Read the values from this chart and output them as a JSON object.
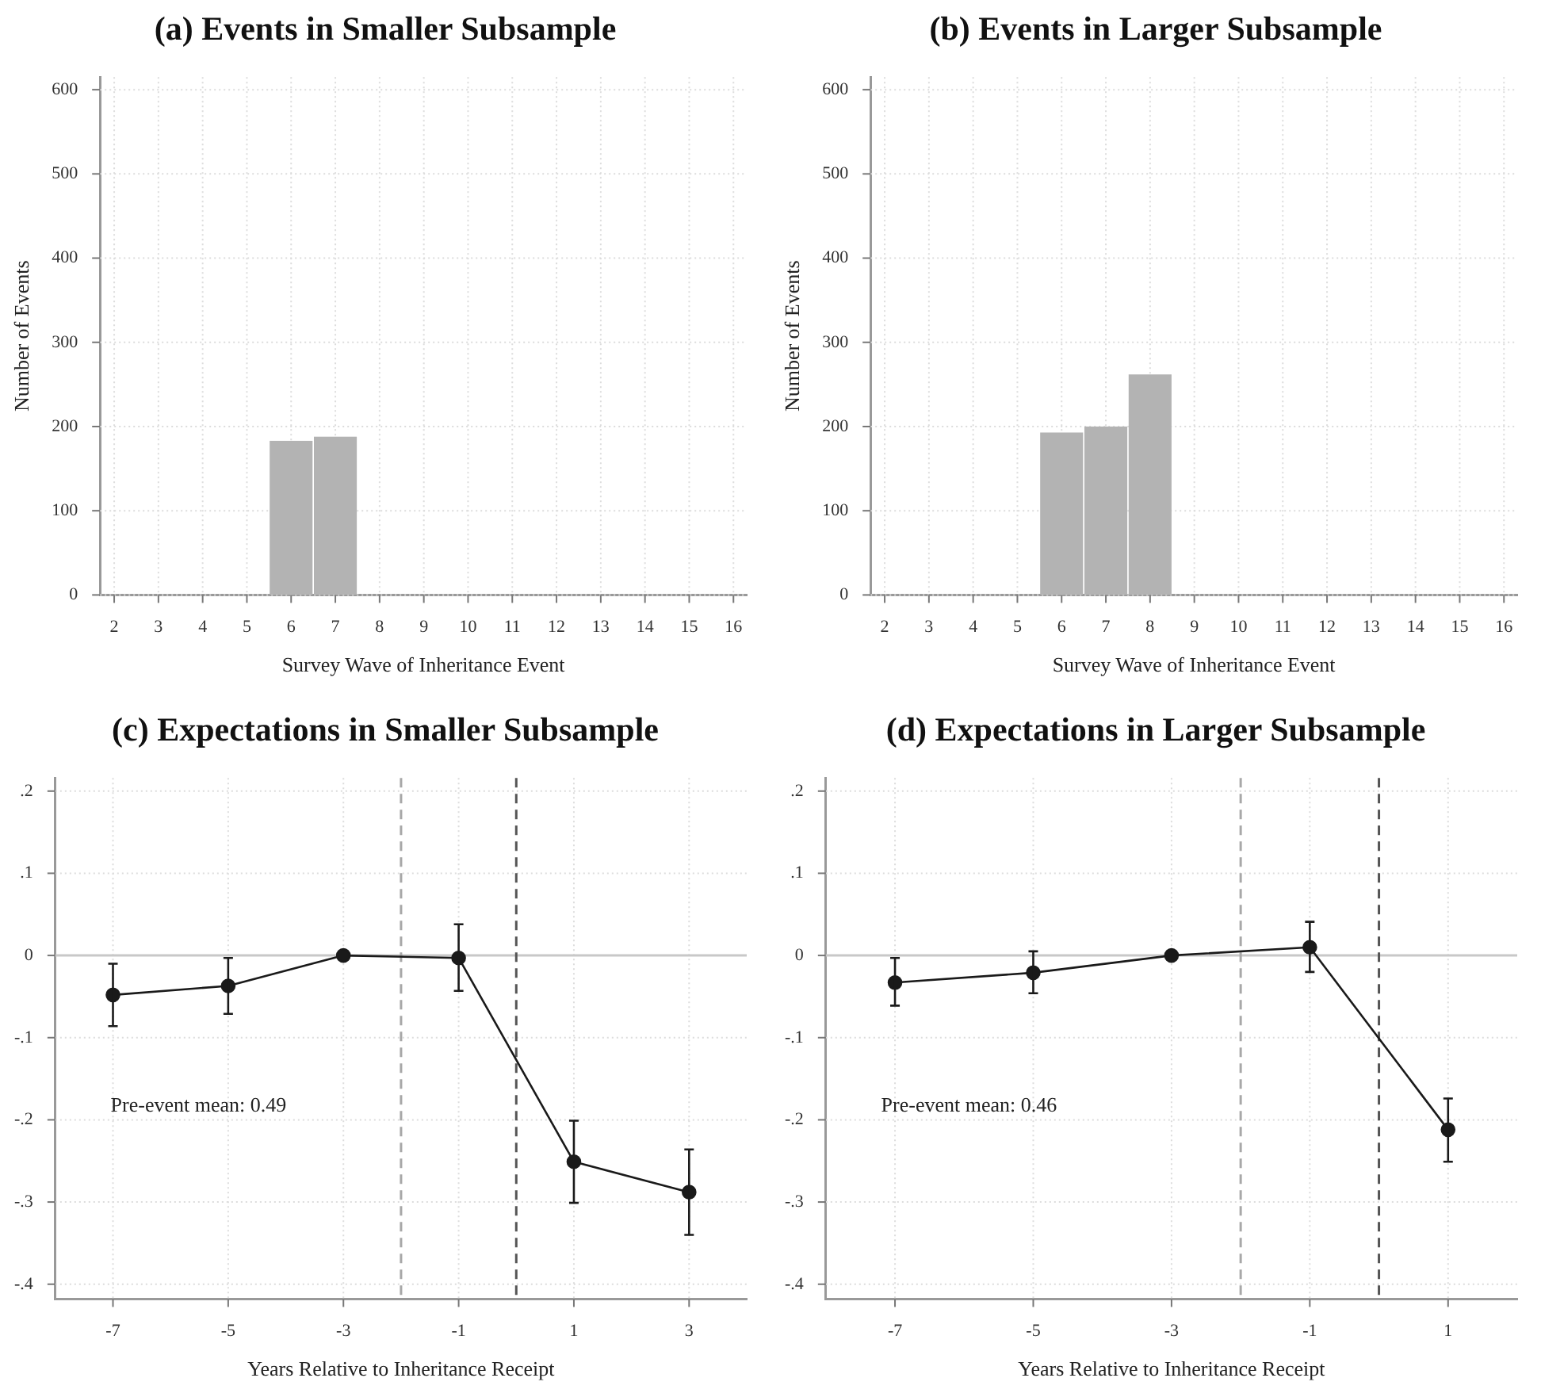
{
  "chart_data": [
    {
      "type": "histogram",
      "title": "(a) Events in Smaller Subsample",
      "xlabel": "Survey Wave of Inheritance Event",
      "ylabel": "Number of Events",
      "bins": [
        5.5,
        6.5,
        7.5
      ],
      "values": [
        183,
        188
      ],
      "color": "#b3b3b3",
      "xlim": [
        1.68,
        16.3
      ],
      "xticks": [
        2,
        3,
        4,
        5,
        6,
        7,
        8,
        9,
        10,
        11,
        12,
        13,
        14,
        15,
        16
      ],
      "ylim": [
        0,
        615
      ],
      "yticks": [
        0,
        100,
        200,
        300,
        400,
        500,
        600
      ],
      "grid": true
    },
    {
      "type": "histogram",
      "title": "(b) Events in Larger Subsample",
      "xlabel": "Survey Wave of Inheritance Event",
      "ylabel": "Number of Events",
      "bins": [
        5.5,
        6.5,
        7.5,
        8.5
      ],
      "values": [
        193,
        200,
        262
      ],
      "color": "#b3b3b3",
      "xlim": [
        1.68,
        16.3
      ],
      "xticks": [
        2,
        3,
        4,
        5,
        6,
        7,
        8,
        9,
        10,
        11,
        12,
        13,
        14,
        15,
        16
      ],
      "ylim": [
        0,
        615
      ],
      "yticks": [
        0,
        100,
        200,
        300,
        400,
        500,
        600
      ],
      "grid": true
    },
    {
      "type": "line",
      "title": "(c) Expectations in Smaller Subsample",
      "xlabel": "Years Relative to Inheritance Receipt",
      "x": [
        -7,
        -5,
        -3,
        -1,
        1,
        3
      ],
      "series": [
        {
          "color": "#1a1a1a",
          "values": [
            -0.048,
            -0.037,
            0,
            -0.003,
            -0.251,
            -0.288
          ],
          "errors": [
            [
              -0.086,
              -0.01
            ],
            [
              -0.071,
              -0.003
            ],
            null,
            [
              -0.043,
              0.038
            ],
            [
              -0.301,
              -0.201
            ],
            [
              -0.34,
              -0.236
            ]
          ]
        }
      ],
      "marker": "circle",
      "xlim": [
        -8,
        4
      ],
      "xticks": [
        -7,
        -5,
        -3,
        -1,
        1,
        3
      ],
      "ylim": [
        -0.418,
        0.216
      ],
      "yticks": [
        {
          "value": -0.4,
          "label": "-.4"
        },
        {
          "value": -0.3,
          "label": "-.3"
        },
        {
          "value": -0.2,
          "label": "-.2"
        },
        {
          "value": -0.1,
          "label": "-.1"
        },
        0,
        {
          "value": 0.1,
          "label": ".1"
        },
        {
          "value": 0.2,
          "label": ".2"
        }
      ],
      "grid": true,
      "ref_lines": [
        {
          "axis": "y",
          "value": 0,
          "color": "#c8c8c8",
          "line_style": "solid"
        },
        {
          "axis": "x",
          "value": -2,
          "color": "#a8a8a8",
          "line_style": "dashed"
        },
        {
          "axis": "x",
          "value": 0,
          "color": "#555555",
          "line_style": "dashed"
        }
      ],
      "annotations": [
        "Pre-event mean: 0.49"
      ]
    },
    {
      "type": "line",
      "title": "(d) Expectations in Larger Subsample",
      "xlabel": "Years Relative to Inheritance Receipt",
      "x": [
        -7,
        -5,
        -3,
        -1,
        1
      ],
      "series": [
        {
          "color": "#1a1a1a",
          "values": [
            -0.033,
            -0.021,
            0,
            0.01,
            -0.212
          ],
          "errors": [
            [
              -0.061,
              -0.003
            ],
            [
              -0.046,
              0.005
            ],
            null,
            [
              -0.02,
              0.041
            ],
            [
              -0.251,
              -0.174
            ]
          ]
        }
      ],
      "marker": "circle",
      "xlim": [
        -8,
        2
      ],
      "xticks": [
        -7,
        -5,
        -3,
        -1,
        1
      ],
      "ylim": [
        -0.418,
        0.216
      ],
      "yticks": [
        {
          "value": -0.4,
          "label": "-.4"
        },
        {
          "value": -0.3,
          "label": "-.3"
        },
        {
          "value": -0.2,
          "label": "-.2"
        },
        {
          "value": -0.1,
          "label": "-.1"
        },
        0,
        {
          "value": 0.1,
          "label": ".1"
        },
        {
          "value": 0.2,
          "label": ".2"
        }
      ],
      "grid": true,
      "ref_lines": [
        {
          "axis": "y",
          "value": 0,
          "color": "#c8c8c8",
          "line_style": "solid"
        },
        {
          "axis": "x",
          "value": -2,
          "color": "#a8a8a8",
          "line_style": "dashed"
        },
        {
          "axis": "x",
          "value": 0,
          "color": "#555555",
          "line_style": "dashed"
        }
      ],
      "annotations": [
        "Pre-event mean: 0.46"
      ]
    }
  ]
}
